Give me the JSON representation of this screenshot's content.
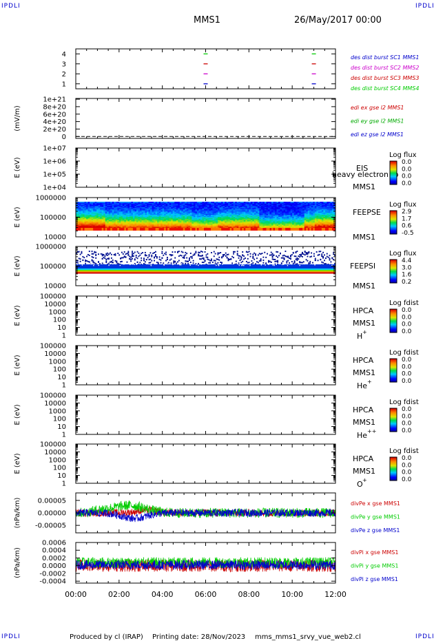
{
  "header": {
    "corner_tl": "IPDLI",
    "corner_tr": "IPDLI",
    "corner_bl": "IPDLI",
    "corner_br": "IPDLI",
    "spacecraft": "MMS1",
    "date": "26/May/2017 00:00"
  },
  "footer": {
    "produced_by": "Produced by cl (IRAP)",
    "printing_date": "Printing date: 28/Nov/2023",
    "script_name": "mms_mms1_srvy_vue_web2.cl"
  },
  "time_axis": {
    "ticks": [
      "00:00",
      "02:00",
      "04:00",
      "06:00",
      "08:00",
      "10:00",
      "12:00"
    ],
    "range_hours": [
      0,
      12
    ]
  },
  "chart_data": [
    {
      "type": "scatter",
      "id": "burst",
      "yticks": [
        "1",
        "2",
        "3",
        "4"
      ],
      "ylim": [
        0.5,
        4.5
      ],
      "legend": [
        {
          "text": "des dist burst SC1 MMS1",
          "color": "#0000cc"
        },
        {
          "text": "des dist burst SC2 MMS2",
          "color": "#cc00cc"
        },
        {
          "text": "des dist burst SC3 MMS3",
          "color": "#cc0000"
        },
        {
          "text": "des dist burst SC4 MMS4",
          "color": "#00cc00"
        }
      ],
      "series": [
        {
          "level": 1,
          "color": "#0000cc",
          "times": [
            6.0,
            11.0
          ]
        },
        {
          "level": 2,
          "color": "#cc00cc",
          "times": [
            6.0,
            11.0
          ]
        },
        {
          "level": 3,
          "color": "#cc0000",
          "times": [
            6.0,
            11.0
          ]
        },
        {
          "level": 4,
          "color": "#00cc00",
          "times": [
            6.0,
            11.0
          ]
        }
      ]
    },
    {
      "type": "line",
      "id": "efield",
      "ylabel": "(mV/m)",
      "yticks": [
        "0",
        "2e+20",
        "4e+20",
        "6e+20",
        "8e+20",
        "1e+21"
      ],
      "ylim": [
        0,
        1e+21
      ],
      "legend": [
        {
          "text": "edi ex gse l2 MMS1",
          "color": "#cc0000"
        },
        {
          "text": "edi ey gse l2 MMS1",
          "color": "#00aa00"
        },
        {
          "text": "edi ez gse l2 MMS1",
          "color": "#0000cc"
        }
      ],
      "values": "dashed flat line at 0"
    },
    {
      "type": "heatmap",
      "id": "eis",
      "ylabel": "E (eV)",
      "yticks": [
        "1e+04",
        "1e+05",
        "1e+06",
        "1e+07"
      ],
      "label_lines": [
        "EIS",
        "MMS1"
      ],
      "overlay": "heavy electron to",
      "cbar_title": "Log flux",
      "cbar_ticks": [
        "0.0",
        "0.0",
        "0.0",
        "0.0"
      ],
      "empty": true
    },
    {
      "type": "heatmap",
      "id": "feepse",
      "ylabel": "E (eV)",
      "yticks": [
        "10000",
        "100000",
        "1000000"
      ],
      "label_lines": [
        "FEEPSE",
        "MMS1"
      ],
      "cbar_title": "Log flux",
      "cbar_ticks": [
        "2.9",
        "1.7",
        "0.6",
        "-0.5"
      ]
    },
    {
      "type": "heatmap",
      "id": "feepsi",
      "ylabel": "E (eV)",
      "yticks": [
        "10000",
        "100000",
        "1000000"
      ],
      "label_lines": [
        "FEEPSI",
        "MMS1"
      ],
      "cbar_title": "Log flux",
      "cbar_ticks": [
        "4.4",
        "3.0",
        "1.6",
        "0.2"
      ]
    },
    {
      "type": "heatmap",
      "id": "hpca_h",
      "ylabel": "E (eV)",
      "yticks": [
        "1",
        "10",
        "100",
        "1000",
        "10000",
        "100000"
      ],
      "label_lines": [
        "HPCA",
        "MMS1"
      ],
      "species": "H",
      "species_sup": "+",
      "cbar_title": "Log fdist",
      "cbar_ticks": [
        "0.0",
        "0.0",
        "0.0",
        "0.0"
      ],
      "empty": true
    },
    {
      "type": "heatmap",
      "id": "hpca_he",
      "ylabel": "E (eV)",
      "yticks": [
        "1",
        "10",
        "100",
        "1000",
        "10000",
        "100000"
      ],
      "label_lines": [
        "HPCA",
        "MMS1"
      ],
      "species": "He",
      "species_sup": "+",
      "cbar_title": "Log fdist",
      "cbar_ticks": [
        "0.0",
        "0.0",
        "0.0",
        "0.0"
      ],
      "empty": true
    },
    {
      "type": "heatmap",
      "id": "hpca_he2",
      "ylabel": "E (eV)",
      "yticks": [
        "1",
        "10",
        "100",
        "1000",
        "10000",
        "100000"
      ],
      "label_lines": [
        "HPCA",
        "MMS1"
      ],
      "species": "He",
      "species_sup": "++",
      "cbar_title": "Log fdist",
      "cbar_ticks": [
        "0.0",
        "0.0",
        "0.0",
        "0.0"
      ],
      "empty": true
    },
    {
      "type": "heatmap",
      "id": "hpca_o",
      "ylabel": "E (eV)",
      "yticks": [
        "1",
        "10",
        "100",
        "1000",
        "10000",
        "100000"
      ],
      "label_lines": [
        "HPCA",
        "MMS1"
      ],
      "species": "O",
      "species_sup": "+",
      "cbar_title": "Log fdist",
      "cbar_ticks": [
        "0.0",
        "0.0",
        "0.0",
        "0.0"
      ],
      "empty": true
    },
    {
      "type": "line",
      "id": "divpe",
      "ylabel": "(nPa/km)",
      "yticks": [
        "-0.00005",
        "0.00000",
        "0.00005"
      ],
      "ylim": [
        -8e-05,
        8e-05
      ],
      "legend": [
        {
          "text": "divPe x gse MMS1",
          "color": "#cc0000"
        },
        {
          "text": "divPe y gse MMS1",
          "color": "#00cc00"
        },
        {
          "text": "divPe z gse MMS1",
          "color": "#0000cc"
        }
      ]
    },
    {
      "type": "line",
      "id": "divpi",
      "ylabel": "(nPa/km)",
      "yticks": [
        "-0.0004",
        "-0.0002",
        "0.0000",
        "0.0002",
        "0.0004",
        "0.0006"
      ],
      "ylim": [
        -0.00045,
        0.0006
      ],
      "legend": [
        {
          "text": "divPi x gse MMS1",
          "color": "#cc0000"
        },
        {
          "text": "divPi y gse MMS1",
          "color": "#00cc00"
        },
        {
          "text": "divPi z gse MMS1",
          "color": "#0000cc"
        }
      ]
    }
  ]
}
